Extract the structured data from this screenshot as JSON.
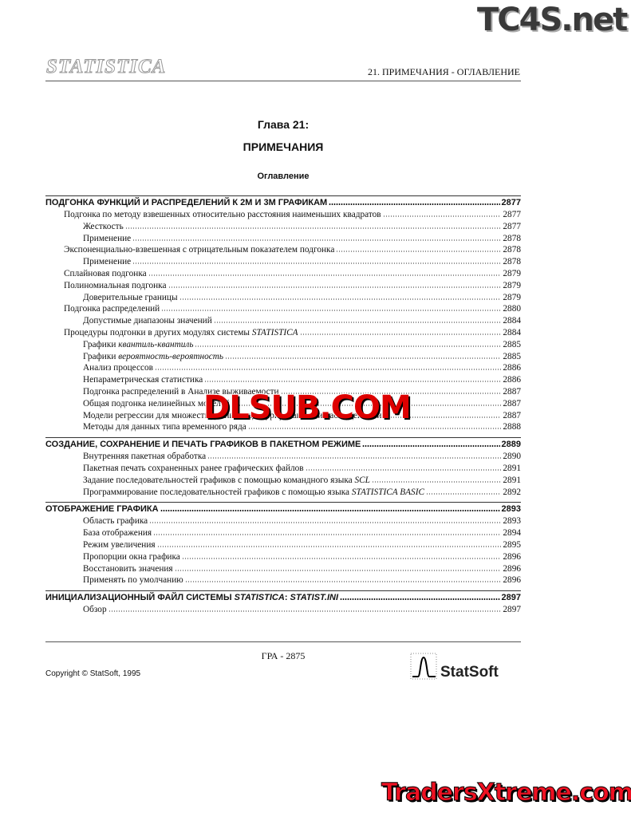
{
  "header": {
    "logo": "STATISTICA",
    "section": "21.  ПРИМЕЧАНИЯ - ОГЛАВЛЕНИЕ"
  },
  "chapter": {
    "label": "Глава 21:",
    "title": "ПРИМЕЧАНИЯ",
    "toc_heading": "Оглавление"
  },
  "toc": {
    "entries": [
      {
        "level": 0,
        "parts": [
          "ПОДГОНКА ФУНКЦИЙ И РАСПРЕДЕЛЕНИЙ К 2М И 3М ГРАФИКАМ"
        ],
        "page": 2877
      },
      {
        "level": 1,
        "parts": [
          "Подгонка по методу взвешенных относительно расстояния наименьших квадратов"
        ],
        "page": 2877
      },
      {
        "level": 2,
        "parts": [
          "Жесткость"
        ],
        "page": 2877
      },
      {
        "level": 2,
        "parts": [
          "Применение"
        ],
        "page": 2878
      },
      {
        "level": 1,
        "parts": [
          "Экспоненциально-взвешенная с отрицательным показателем подгонка"
        ],
        "page": 2878
      },
      {
        "level": 2,
        "parts": [
          "Применение"
        ],
        "page": 2878
      },
      {
        "level": 1,
        "parts": [
          "Сплайновая подгонка"
        ],
        "page": 2879
      },
      {
        "level": 1,
        "parts": [
          "Полиномиальная подгонка"
        ],
        "page": 2879
      },
      {
        "level": 2,
        "parts": [
          "Доверительные границы"
        ],
        "page": 2879
      },
      {
        "level": 1,
        "parts": [
          "Подгонка распределений"
        ],
        "page": 2880
      },
      {
        "level": 2,
        "parts": [
          "Допустимые диапазоны значений"
        ],
        "page": 2884
      },
      {
        "level": 1,
        "parts": [
          "Процедуры подгонки в других модулях системы ",
          {
            "text": "STATISTICA",
            "italic": true
          }
        ],
        "page": 2884
      },
      {
        "level": 2,
        "parts": [
          "Графики ",
          {
            "text": "квантиль-квантиль",
            "italic": true
          }
        ],
        "page": 2885
      },
      {
        "level": 2,
        "parts": [
          "Графики ",
          {
            "text": "вероятность-вероятность",
            "italic": true
          }
        ],
        "page": 2885
      },
      {
        "level": 2,
        "parts": [
          "Анализ процессов"
        ],
        "page": 2886
      },
      {
        "level": 2,
        "parts": [
          "Непараметрическая статистика"
        ],
        "page": 2886
      },
      {
        "level": 2,
        "parts": [
          "Подгонка распределений в Анализе выживаемости"
        ],
        "page": 2887
      },
      {
        "level": 2,
        "parts": [
          "Общая подгонка нелинейных моделей"
        ],
        "page": 2887
      },
      {
        "level": 2,
        "parts": [
          "Модели регрессии для множеств данных с цензурированными наблюдениями"
        ],
        "page": 2887
      },
      {
        "level": 2,
        "parts": [
          "Методы для данных типа временного ряда"
        ],
        "page": 2888
      },
      {
        "level": 0,
        "parts": [
          "СОЗДАНИЕ, СОХРАНЕНИЕ И ПЕЧАТЬ ГРАФИКОВ В ПАКЕТНОМ РЕЖИМЕ"
        ],
        "page": 2889
      },
      {
        "level": 2,
        "parts": [
          "Внутренняя пакетная обработка"
        ],
        "page": 2890
      },
      {
        "level": 2,
        "parts": [
          "Пакетная печать сохраненных ранее графических файлов"
        ],
        "page": 2891
      },
      {
        "level": 2,
        "parts": [
          "Задание последовательностей графиков с помощью командного языка ",
          {
            "text": "SCL",
            "italic": true
          }
        ],
        "page": 2891
      },
      {
        "level": 2,
        "parts": [
          "Программирование последовательностей графиков с помощью языка ",
          {
            "text": "STATISTICA BASIC",
            "italic": true
          }
        ],
        "page": 2892
      },
      {
        "level": 0,
        "parts": [
          "ОТОБРАЖЕНИЕ ГРАФИКА"
        ],
        "page": 2893
      },
      {
        "level": 2,
        "parts": [
          "Область графика"
        ],
        "page": 2893
      },
      {
        "level": 2,
        "parts": [
          "База отображения"
        ],
        "page": 2894
      },
      {
        "level": 2,
        "parts": [
          "Режим увеличения"
        ],
        "page": 2895
      },
      {
        "level": 2,
        "parts": [
          "Пропорции окна графика"
        ],
        "page": 2896
      },
      {
        "level": 2,
        "parts": [
          "Восстановить значения"
        ],
        "page": 2896
      },
      {
        "level": 2,
        "parts": [
          "Применять по умолчанию"
        ],
        "page": 2896
      },
      {
        "level": 0,
        "parts": [
          "ИНИЦИАЛИЗАЦИОННЫЙ ФАЙЛ СИСТЕМЫ ",
          {
            "text": "STATISTICA",
            "italic": true
          },
          ": ",
          {
            "text": "STATIST.INI",
            "italic": true
          }
        ],
        "page": 2897
      },
      {
        "level": 2,
        "parts": [
          "Обзор"
        ],
        "page": 2897
      }
    ]
  },
  "footer": {
    "page_label": "ГРА - 2875",
    "copyright": "Copyright © StatSoft, 1995",
    "brand": "StatSoft"
  },
  "watermarks": {
    "top": "TC4S.net",
    "middle": "DLSUB.COM",
    "bottom": "TradersXtreme.com"
  }
}
